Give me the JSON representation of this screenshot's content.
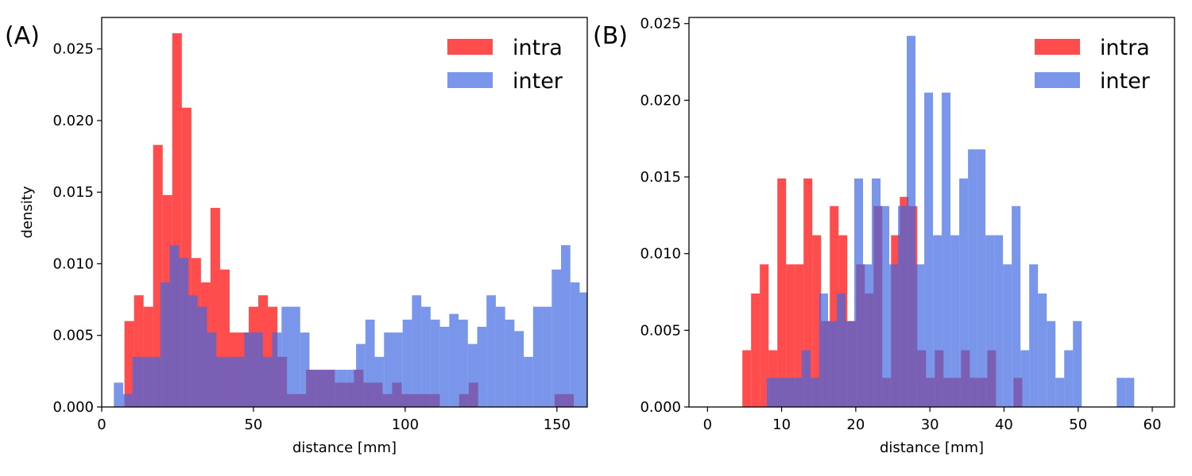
{
  "colors": {
    "intra": "#ff0000",
    "inter": "#4169e1",
    "frame": "#000000"
  },
  "alpha": 0.7,
  "panels": [
    {
      "label": "(A)",
      "chart_data": {
        "type": "histogram",
        "xlabel": "distance [mm]",
        "ylabel": "density",
        "xlim": [
          0,
          160
        ],
        "ylim": [
          0,
          0.0272
        ],
        "xticks": [
          0,
          50,
          100,
          150
        ],
        "yticks": [
          0.0,
          0.005,
          0.01,
          0.015,
          0.02,
          0.025
        ],
        "ytick_labels": [
          "0.000",
          "0.005",
          "0.010",
          "0.015",
          "0.020",
          "0.025"
        ],
        "legend_position": "top-right",
        "series": [
          {
            "name": "intra",
            "bin_start": 7.5,
            "bin_width": 3.15,
            "values": [
              0.006,
              0.0078,
              0.007,
              0.0183,
              0.0148,
              0.0261,
              0.0209,
              0.0104,
              0.0087,
              0.0139,
              0.0096,
              0.0052,
              0.0052,
              0.007,
              0.0078,
              0.007,
              0.0035,
              0.0009,
              0.0009,
              0.0026,
              0.0026,
              0.0026,
              0.0017,
              0.0017,
              0.0026,
              0.0017,
              0.0017,
              0.0009,
              0.0017,
              0.0009,
              0.0009,
              0.0009,
              0.0009,
              0.0,
              0.0,
              0.0009,
              0.0017,
              0.0,
              0.0,
              0.0,
              0.0,
              0.0,
              0.0,
              0.0,
              0.0,
              0.0009,
              0.0009
            ]
          },
          {
            "name": "inter",
            "bin_start": 4.0,
            "bin_width": 3.07,
            "values": [
              0.0017,
              0.0009,
              0.0035,
              0.0035,
              0.0035,
              0.0087,
              0.0113,
              0.0104,
              0.0078,
              0.007,
              0.0052,
              0.0035,
              0.0035,
              0.0035,
              0.0052,
              0.0052,
              0.0035,
              0.0052,
              0.007,
              0.007,
              0.0052,
              0.0026,
              0.0026,
              0.0026,
              0.0026,
              0.0026,
              0.0044,
              0.0061,
              0.0035,
              0.0052,
              0.0052,
              0.0061,
              0.0078,
              0.007,
              0.0061,
              0.0056,
              0.0065,
              0.0061,
              0.0044,
              0.0056,
              0.0078,
              0.007,
              0.0061,
              0.0053,
              0.0035,
              0.007,
              0.007,
              0.0096,
              0.0113,
              0.0087,
              0.008
            ]
          }
        ]
      }
    },
    {
      "label": "(B)",
      "chart_data": {
        "type": "histogram",
        "xlabel": "distance [mm]",
        "ylabel": "",
        "xlim": [
          -2.5,
          63.0
        ],
        "ylim": [
          0,
          0.0254
        ],
        "xticks": [
          0,
          10,
          20,
          30,
          40,
          50,
          60
        ],
        "yticks": [
          0.0,
          0.005,
          0.01,
          0.015,
          0.02,
          0.025
        ],
        "ytick_labels": [
          "0.000",
          "0.005",
          "0.010",
          "0.015",
          "0.020",
          "0.025"
        ],
        "legend_position": "top-right",
        "series": [
          {
            "name": "intra",
            "bin_start": 4.7,
            "bin_width": 1.18,
            "values": [
              0.0037,
              0.0074,
              0.0093,
              0.0037,
              0.0149,
              0.0093,
              0.0093,
              0.0149,
              0.0112,
              0.0056,
              0.0131,
              0.0112,
              0.0056,
              0.0093,
              0.0074,
              0.0131,
              0.0019,
              0.0112,
              0.0137,
              0.0131,
              0.0037,
              0.0019,
              0.0037,
              0.0019,
              0.0019,
              0.0037,
              0.0019,
              0.0019,
              0.0037,
              0.0,
              0.0,
              0.0019
            ]
          },
          {
            "name": "inter",
            "bin_start": 8.0,
            "bin_width": 1.18,
            "values": [
              0.0019,
              0.0019,
              0.0019,
              0.0019,
              0.0037,
              0.0019,
              0.0074,
              0.0056,
              0.0074,
              0.0056,
              0.0149,
              0.0093,
              0.0149,
              0.0131,
              0.0093,
              0.0131,
              0.0242,
              0.0093,
              0.0205,
              0.0112,
              0.0205,
              0.0112,
              0.0149,
              0.0168,
              0.0168,
              0.0112,
              0.0112,
              0.0093,
              0.0131,
              0.0037,
              0.0093,
              0.0074,
              0.0056,
              0.0019,
              0.0037,
              0.0056,
              0.0,
              0.0,
              0.0,
              0.0,
              0.0019,
              0.0019
            ]
          }
        ]
      }
    }
  ]
}
